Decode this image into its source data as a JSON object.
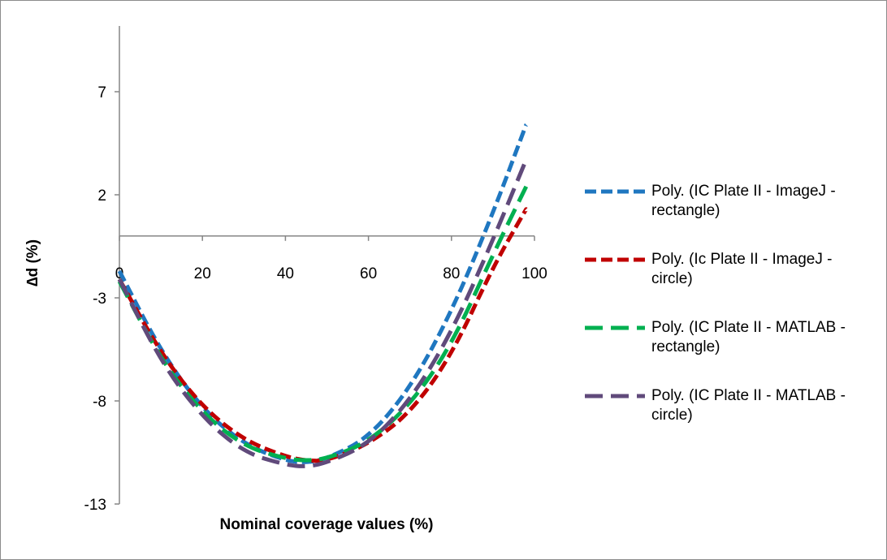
{
  "chart_data": {
    "type": "line",
    "title": "",
    "xlabel": "Nominal coverage values  (%)",
    "ylabel": "∆d  (%)",
    "xlim": [
      0,
      100
    ],
    "ylim": [
      -13,
      10
    ],
    "x_ticks": [
      "0",
      "20",
      "40",
      "60",
      "80",
      "100"
    ],
    "y_ticks": [
      "7",
      "2",
      "-3",
      "-8",
      "-13"
    ],
    "legend_position": "right",
    "series": [
      {
        "name": "Poly. (IC Plate II - ImageJ - rectangle)",
        "color": "#1f77c0",
        "x": [
          0,
          10,
          20,
          30,
          40,
          45,
          50,
          60,
          70,
          80,
          90,
          98
        ],
        "y": [
          -1.7,
          -5.6,
          -8.4,
          -10.1,
          -10.9,
          -11.0,
          -10.8,
          -9.8,
          -7.4,
          -3.7,
          1.1,
          5.4
        ]
      },
      {
        "name": "Poly. (Ic Plate II - ImageJ - circle)",
        "color": "#c00000",
        "x": [
          0,
          10,
          20,
          30,
          40,
          45,
          50,
          60,
          70,
          80,
          90,
          98
        ],
        "y": [
          -2.1,
          -5.7,
          -8.3,
          -9.9,
          -10.7,
          -10.9,
          -10.9,
          -10.1,
          -8.6,
          -5.8,
          -1.5,
          1.3
        ]
      },
      {
        "name": "Poly. (IC Plate II - MATLAB - rectangle)",
        "color": "#00b050",
        "x": [
          0,
          10,
          20,
          30,
          40,
          45,
          50,
          60,
          70,
          80,
          90,
          98
        ],
        "y": [
          -2.2,
          -6.0,
          -8.6,
          -10.2,
          -10.8,
          -10.9,
          -10.8,
          -10.0,
          -8.2,
          -5.3,
          -0.9,
          2.4
        ]
      },
      {
        "name": "Poly. (IC Plate II - MATLAB - circle)",
        "color": "#604a7b",
        "x": [
          0,
          10,
          20,
          30,
          40,
          45,
          50,
          60,
          70,
          80,
          90,
          98
        ],
        "y": [
          -2.1,
          -6.1,
          -8.8,
          -10.5,
          -11.1,
          -11.2,
          -11.0,
          -10.1,
          -8.0,
          -4.7,
          -0.2,
          3.7
        ]
      }
    ]
  }
}
